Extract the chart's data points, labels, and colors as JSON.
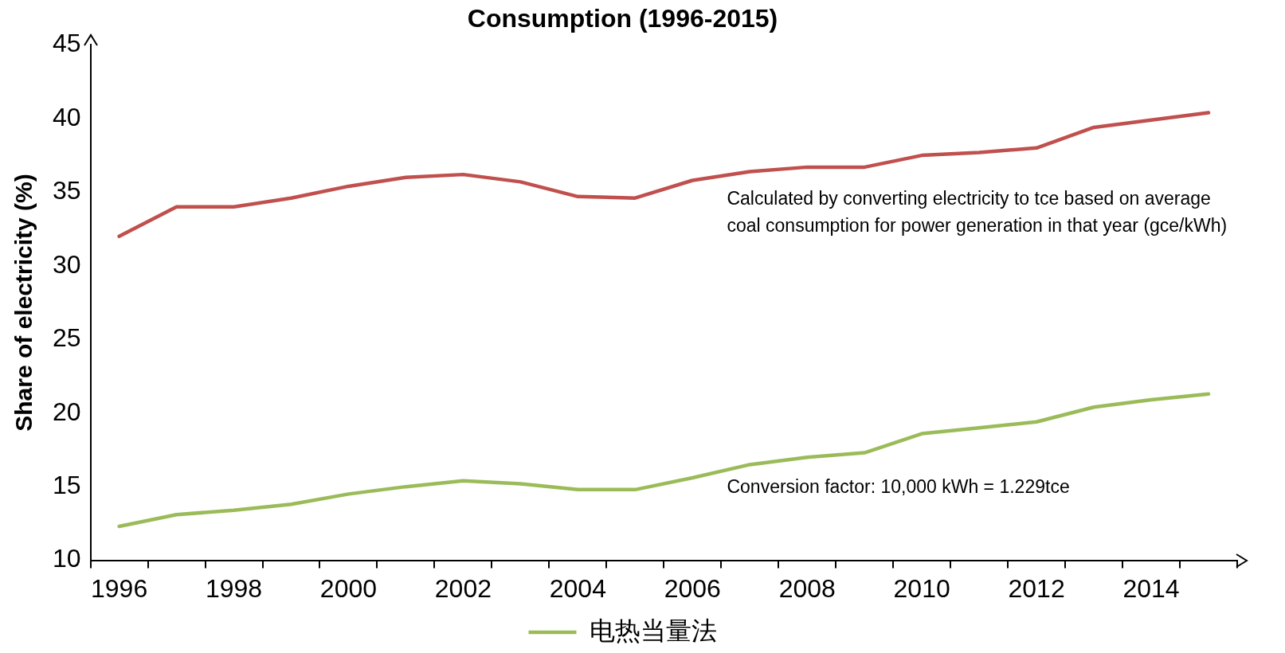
{
  "chart_data": {
    "type": "line",
    "title": "Consumption (1996-2015)",
    "ylabel": "Share of electricity (%)",
    "categories": [
      "1996",
      null,
      "1998",
      null,
      "2000",
      null,
      "2002",
      null,
      "2004",
      null,
      "2006",
      null,
      "2008",
      null,
      "2010",
      null,
      "2012",
      null,
      "2014",
      null
    ],
    "series": [
      {
        "color": "#c0504d",
        "values": [
          32.0,
          34.0,
          34.0,
          34.6,
          35.4,
          36.0,
          36.2,
          35.7,
          34.7,
          34.6,
          35.8,
          36.4,
          36.7,
          36.7,
          37.5,
          37.7,
          38.0,
          39.4,
          39.9,
          40.4
        ]
      },
      {
        "name": "电热当量法",
        "color": "#9bbb59",
        "values": [
          12.3,
          13.1,
          13.4,
          13.8,
          14.5,
          15.0,
          15.4,
          15.2,
          14.8,
          14.8,
          15.6,
          16.5,
          17.0,
          17.3,
          18.6,
          19.0,
          19.4,
          20.4,
          20.9,
          21.3
        ]
      }
    ],
    "ylim": [
      10,
      45
    ],
    "yticks": [
      10,
      15,
      20,
      25,
      30,
      35,
      40,
      45
    ],
    "grid": false,
    "legend": "bottom",
    "marker": "none",
    "line_style": "solid",
    "annotations": [
      "Calculated by converting electricity to tce based on average coal consumption for power generation in that year (gce/kWh)",
      "Conversion factor: 10,000 kWh = 1.229tce"
    ]
  }
}
